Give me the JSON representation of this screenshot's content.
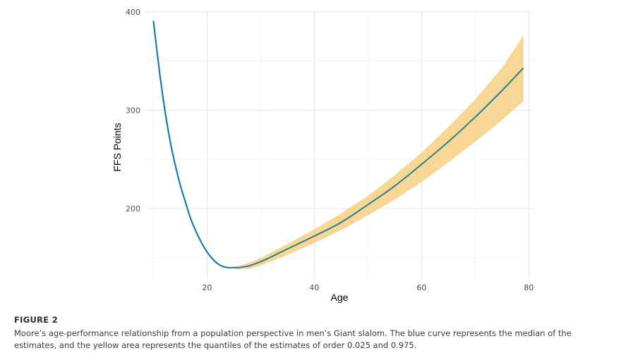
{
  "chart_data": {
    "type": "line",
    "xlabel": "Age",
    "ylabel": "FFS Points",
    "xlim": [
      8.5,
      81
    ],
    "ylim": [
      127,
      402
    ],
    "x_ticks": [
      20,
      40,
      60,
      80
    ],
    "y_ticks": [
      200,
      300,
      400
    ],
    "grid": true,
    "series": [
      {
        "name": "median",
        "color": "#2e7d8f",
        "early_color": "#1a78b0",
        "x": [
          10,
          11,
          12,
          13,
          14,
          15,
          16,
          17,
          18,
          19,
          20,
          21,
          22,
          23,
          24,
          25,
          26,
          27,
          28,
          30,
          32,
          35,
          40,
          45,
          50,
          55,
          60,
          65,
          70,
          75,
          79
        ],
        "y": [
          391,
          345,
          305,
          272,
          246,
          224,
          206,
          189,
          176,
          165,
          156,
          149,
          144,
          141,
          140,
          140,
          140,
          141,
          142,
          146,
          151,
          159,
          172,
          186,
          204,
          223,
          245,
          268,
          293,
          320,
          343
        ]
      }
    ],
    "band": {
      "name": "quantiles 0.025–0.975",
      "color": "#f8d796",
      "x": [
        24,
        25,
        26,
        28,
        30,
        35,
        40,
        45,
        50,
        55,
        60,
        65,
        70,
        75,
        79
      ],
      "lower": [
        140,
        139,
        138.5,
        139,
        142,
        153,
        165,
        178,
        193,
        209,
        227,
        247,
        268,
        290,
        309
      ],
      "upper": [
        140,
        141,
        142,
        145,
        150,
        164,
        179,
        195,
        213,
        234,
        257,
        283,
        311,
        343,
        376
      ]
    }
  },
  "caption": {
    "label": "FIGURE 2",
    "text": "Moore’s age-performance relationship from a population perspective in men’s Giant slalom. The blue curve represents the median of the estimates, and the yellow area represents the quantiles of the estimates of order 0.025 and 0.975."
  }
}
